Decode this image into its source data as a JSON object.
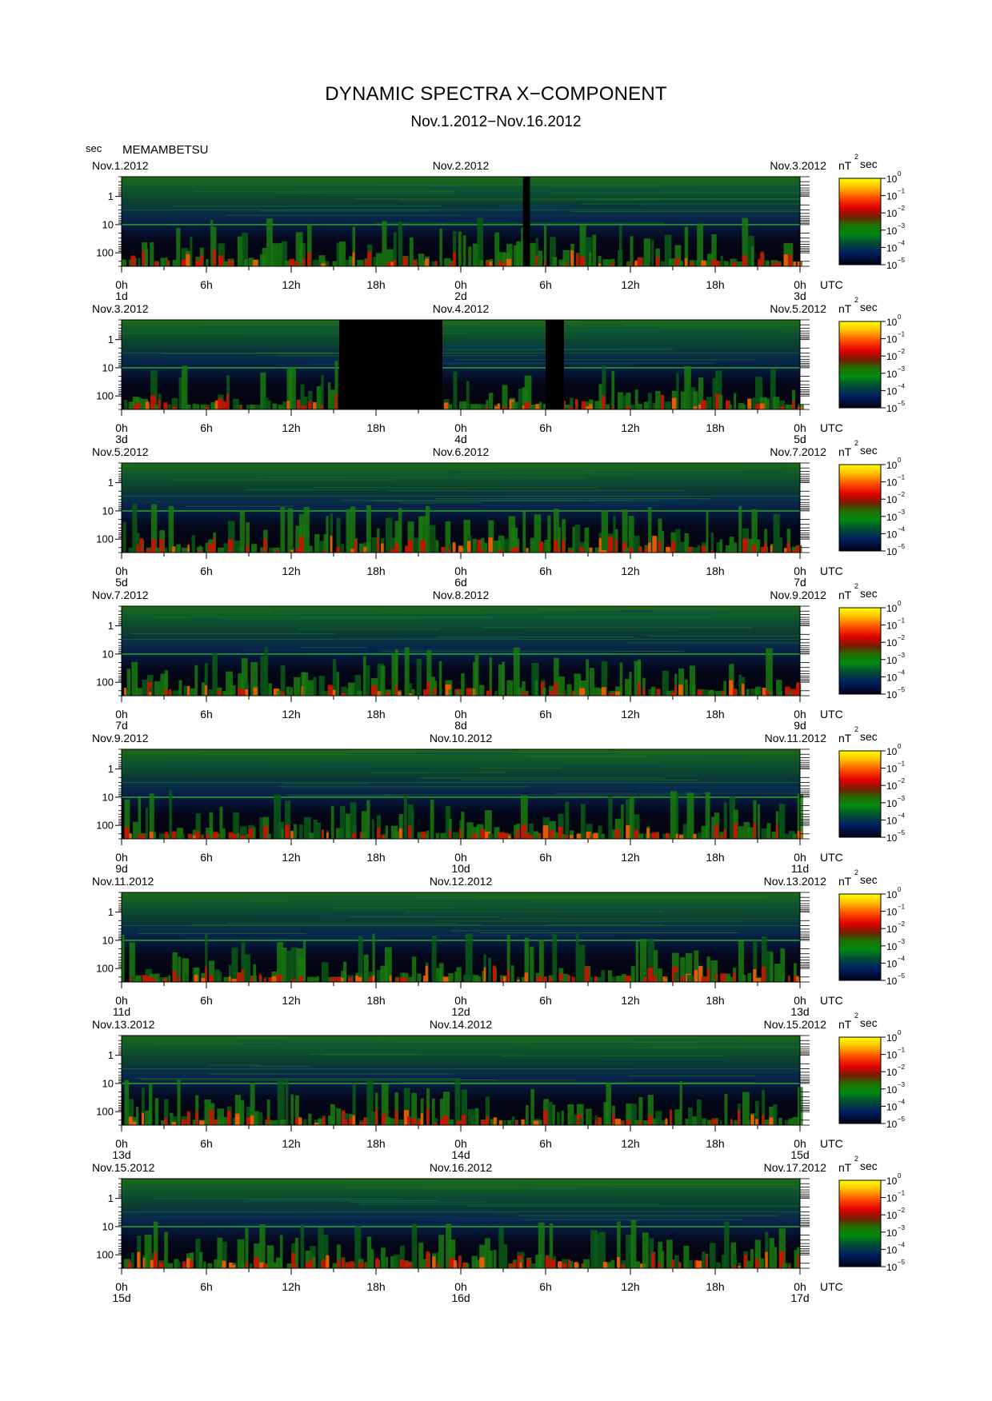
{
  "title": "DYNAMIC SPECTRA X−COMPONENT",
  "subtitle": "Nov.1.2012−Nov.16.2012",
  "y_unit_label": "sec",
  "station": "MEMAMBETSU",
  "colorbar": {
    "unit_prefix": "nT",
    "unit_exp": "2",
    "unit_suffix": "sec",
    "base": "10",
    "exponents": [
      "0",
      "−1",
      "−2",
      "−3",
      "−4",
      "−5"
    ],
    "colors": [
      "#ffff00",
      "#ffb000",
      "#ff3000",
      "#d00000",
      "#207000",
      "#009000",
      "#004010",
      "#00205a",
      "#000018"
    ]
  },
  "chart_data": {
    "type": "heatmap",
    "y_axis": {
      "scale": "log",
      "ticks": [
        "1",
        "10",
        "100"
      ],
      "range_sec": [
        0.2,
        300
      ],
      "inverted": true
    },
    "x_tick_labels": [
      "0h",
      "6h",
      "12h",
      "18h",
      "0h",
      "6h",
      "12h",
      "18h",
      "0h"
    ],
    "time_zone": "UTC",
    "panels": [
      {
        "date_left": "Nov.1.2012",
        "date_mid": "Nov.2.2012",
        "date_right": "Nov.3.2012",
        "day_left": "1d",
        "day_mid": "2d",
        "day_right": "3d",
        "gaps_hours": [
          [
            28.4,
            28.9
          ]
        ]
      },
      {
        "date_left": "Nov.3.2012",
        "date_mid": "Nov.4.2012",
        "date_right": "Nov.5.2012",
        "day_left": "3d",
        "day_mid": "4d",
        "day_right": "5d",
        "gaps_hours": [
          [
            15.4,
            22.7
          ],
          [
            30.0,
            31.3
          ]
        ]
      },
      {
        "date_left": "Nov.5.2012",
        "date_mid": "Nov.6.2012",
        "date_right": "Nov.7.2012",
        "day_left": "5d",
        "day_mid": "6d",
        "day_right": "7d",
        "gaps_hours": []
      },
      {
        "date_left": "Nov.7.2012",
        "date_mid": "Nov.8.2012",
        "date_right": "Nov.9.2012",
        "day_left": "7d",
        "day_mid": "8d",
        "day_right": "9d",
        "gaps_hours": []
      },
      {
        "date_left": "Nov.9.2012",
        "date_mid": "Nov.10.2012",
        "date_right": "Nov.11.2012",
        "day_left": "9d",
        "day_mid": "10d",
        "day_right": "11d",
        "gaps_hours": []
      },
      {
        "date_left": "Nov.11.2012",
        "date_mid": "Nov.12.2012",
        "date_right": "Nov.13.2012",
        "day_left": "11d",
        "day_mid": "12d",
        "day_right": "13d",
        "gaps_hours": []
      },
      {
        "date_left": "Nov.13.2012",
        "date_mid": "Nov.14.2012",
        "date_right": "Nov.15.2012",
        "day_left": "13d",
        "day_mid": "14d",
        "day_right": "15d",
        "gaps_hours": []
      },
      {
        "date_left": "Nov.15.2012",
        "date_mid": "Nov.16.2012",
        "date_right": "Nov.17.2012",
        "day_left": "15d",
        "day_mid": "16d",
        "day_right": "17d",
        "gaps_hours": []
      }
    ]
  }
}
